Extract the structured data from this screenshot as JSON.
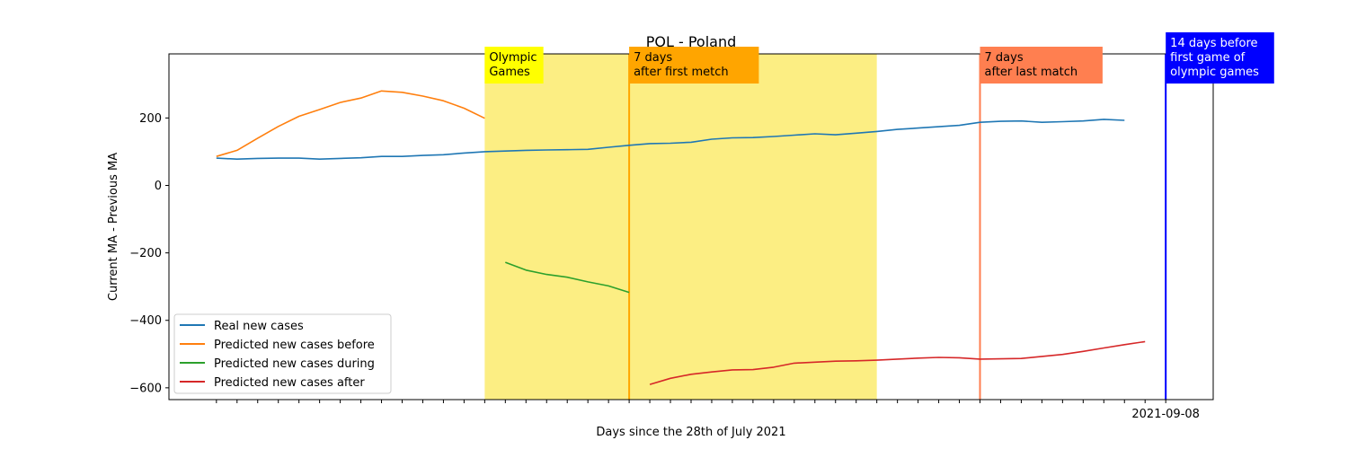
{
  "chart_data": {
    "type": "line",
    "title": "POL - Poland",
    "xlabel": "Days since the 28th of July 2021",
    "ylabel": "Current MA - Previous MA",
    "ylim": [
      -635,
      390
    ],
    "yticks": [
      200,
      0,
      -200,
      -400,
      -600
    ],
    "ytick_labels": [
      "200",
      "0",
      "−200",
      "−400",
      "−600"
    ],
    "xlim": [
      -2.3,
      48.3
    ],
    "last_xtick_label": "2021-09-08",
    "grid": false,
    "legend_position": "lower-left",
    "olympic_period": {
      "start": 13,
      "end": 32,
      "color": "#fcee83"
    },
    "markers": [
      {
        "x": 20,
        "label": "7 days\nafter first metch",
        "line_color": "#ffa500",
        "box_color": "#ffa500",
        "text_color": "#000000"
      },
      {
        "x": 37,
        "label": "7 days\nafter last match",
        "line_color": "#ff7f50",
        "box_color": "#ff7f50",
        "text_color": "#000000"
      },
      {
        "x": 46,
        "label": "14 days before\nfirst game of\nolympic games",
        "line_color": "#0000ff",
        "box_color": "#0000ff",
        "text_color": "#ffffff"
      }
    ],
    "olympic_label": {
      "text": "Olympic\nGames",
      "box_color": "#ffff00"
    },
    "series": [
      {
        "name": "Real new cases",
        "color": "#1f77b4",
        "x_start": 0,
        "values": [
          81,
          78,
          80,
          81,
          81,
          78,
          80,
          82,
          86,
          86,
          89,
          91,
          96,
          100,
          102,
          104,
          105,
          106,
          107,
          113,
          119,
          124,
          125,
          128,
          137,
          141,
          142,
          145,
          149,
          153,
          150,
          155,
          160,
          166,
          170,
          174,
          178,
          187,
          190,
          191,
          187,
          189,
          191,
          196,
          193
        ]
      },
      {
        "name": "Predicted new cases before",
        "color": "#ff7f0e",
        "x_start": 0,
        "values": [
          86,
          104,
          140,
          175,
          205,
          225,
          246,
          259,
          280,
          276,
          265,
          251,
          229,
          199
        ]
      },
      {
        "name": "Predicted new cases during",
        "color": "#2ca02c",
        "x_start": 14,
        "values": [
          -228,
          -251,
          -264,
          -272,
          -286,
          -298,
          -317
        ]
      },
      {
        "name": "Predicted new cases after",
        "color": "#d62728",
        "x_start": 21,
        "values": [
          -590,
          -572,
          -560,
          -553,
          -547,
          -546,
          -539,
          -527,
          -524,
          -521,
          -520,
          -518,
          -515,
          -512,
          -510,
          -511,
          -515,
          -514,
          -513,
          -507,
          -501,
          -492,
          -482,
          -472,
          -463
        ]
      }
    ]
  }
}
